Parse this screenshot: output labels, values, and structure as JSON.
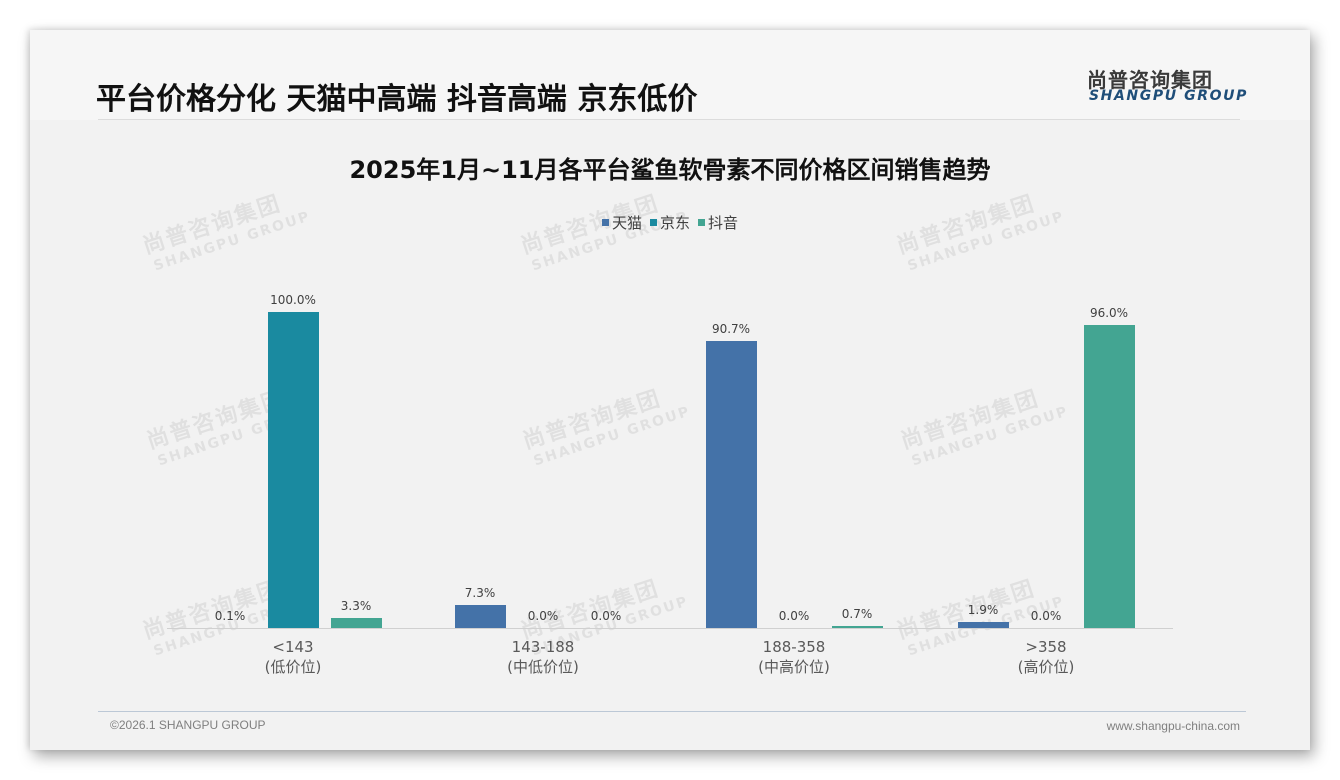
{
  "header": {
    "title": "平台价格分化 天猫中高端 抖音高端 京东低价",
    "logo_cn": "尚普咨询集团",
    "logo_en": "SHANGPU GROUP"
  },
  "watermark": {
    "cn": "尚普咨询集团",
    "en": "SHANGPU GROUP"
  },
  "footer": {
    "copyright": "©2026.1 SHANGPU GROUP",
    "website": "www.shangpu-china.com"
  },
  "colors": {
    "tmall": "#4472a8",
    "jd": "#1a8aa0",
    "douyin": "#43a592",
    "title": "#111111",
    "logo_en": "#1f4e79"
  },
  "legend": [
    {
      "name": "天猫",
      "color": "#4472a8"
    },
    {
      "name": "京东",
      "color": "#1a8aa0"
    },
    {
      "name": "抖音",
      "color": "#43a592"
    }
  ],
  "chart_data": {
    "type": "bar",
    "title": "2025年1月~11月各平台鲨鱼软骨素不同价格区间销售趋势",
    "categories": [
      "<143",
      "143-188",
      "188-358",
      ">358"
    ],
    "category_sublabels": [
      "(低价位)",
      "(中低价位)",
      "(中高价位)",
      "(高价位)"
    ],
    "series": [
      {
        "name": "天猫",
        "values": [
          0.1,
          7.3,
          90.7,
          1.9
        ],
        "labels": [
          "0.1%",
          "7.3%",
          "90.7%",
          "1.9%"
        ]
      },
      {
        "name": "京东",
        "values": [
          100.0,
          0.0,
          0.0,
          0.0
        ],
        "labels": [
          "100.0%",
          "0.0%",
          "0.0%",
          "0.0%"
        ]
      },
      {
        "name": "抖音",
        "values": [
          3.3,
          0.0,
          0.7,
          96.0
        ],
        "labels": [
          "3.3%",
          "0.0%",
          "0.7%",
          "96.0%"
        ]
      }
    ],
    "xlabel": "",
    "ylabel": "",
    "ylim": [
      0,
      100
    ],
    "grid": false,
    "legend_position": "top",
    "data_labels": true
  }
}
